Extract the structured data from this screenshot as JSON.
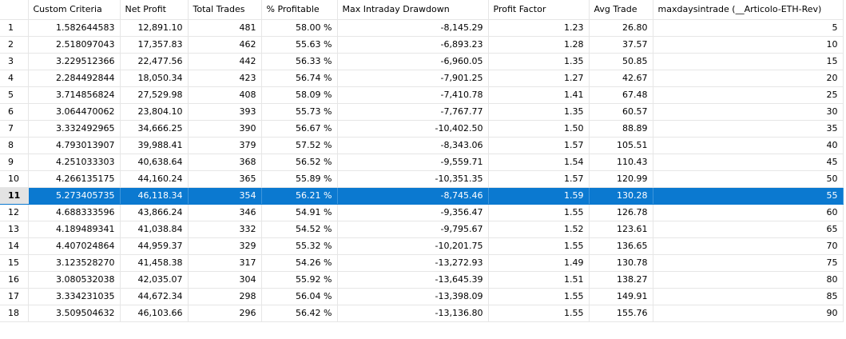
{
  "columns": [
    "",
    "Custom Criteria",
    "Net Profit",
    "Total Trades",
    "% Profitable",
    "Max Intraday Drawdown",
    "Profit Factor",
    "Avg Trade",
    "maxdaysintrade (__Articolo-ETH-Rev)"
  ],
  "selected_row": 11,
  "rows": [
    [
      "1",
      "1.582644583",
      "12,891.10",
      "481",
      "58.00 %",
      "-8,145.29",
      "1.23",
      "26.80",
      "5"
    ],
    [
      "2",
      "2.518097043",
      "17,357.83",
      "462",
      "55.63 %",
      "-6,893.23",
      "1.28",
      "37.57",
      "10"
    ],
    [
      "3",
      "3.229512366",
      "22,477.56",
      "442",
      "56.33 %",
      "-6,960.05",
      "1.35",
      "50.85",
      "15"
    ],
    [
      "4",
      "2.284492844",
      "18,050.34",
      "423",
      "56.74 %",
      "-7,901.25",
      "1.27",
      "42.67",
      "20"
    ],
    [
      "5",
      "3.714856824",
      "27,529.98",
      "408",
      "58.09 %",
      "-7,410.78",
      "1.41",
      "67.48",
      "25"
    ],
    [
      "6",
      "3.064470062",
      "23,804.10",
      "393",
      "55.73 %",
      "-7,767.77",
      "1.35",
      "60.57",
      "30"
    ],
    [
      "7",
      "3.332492965",
      "34,666.25",
      "390",
      "56.67 %",
      "-10,402.50",
      "1.50",
      "88.89",
      "35"
    ],
    [
      "8",
      "4.793013907",
      "39,988.41",
      "379",
      "57.52 %",
      "-8,343.06",
      "1.57",
      "105.51",
      "40"
    ],
    [
      "9",
      "4.251033303",
      "40,638.64",
      "368",
      "56.52 %",
      "-9,559.71",
      "1.54",
      "110.43",
      "45"
    ],
    [
      "10",
      "4.266135175",
      "44,160.24",
      "365",
      "55.89 %",
      "-10,351.35",
      "1.57",
      "120.99",
      "50"
    ],
    [
      "11",
      "5.273405735",
      "46,118.34",
      "354",
      "56.21 %",
      "-8,745.46",
      "1.59",
      "130.28",
      "55"
    ],
    [
      "12",
      "4.688333596",
      "43,866.24",
      "346",
      "54.91 %",
      "-9,356.47",
      "1.55",
      "126.78",
      "60"
    ],
    [
      "13",
      "4.189489341",
      "41,038.84",
      "332",
      "54.52 %",
      "-9,795.67",
      "1.52",
      "123.61",
      "65"
    ],
    [
      "14",
      "4.407024864",
      "44,959.37",
      "329",
      "55.32 %",
      "-10,201.75",
      "1.55",
      "136.65",
      "70"
    ],
    [
      "15",
      "3.123528270",
      "41,458.38",
      "317",
      "54.26 %",
      "-13,272.93",
      "1.49",
      "130.78",
      "75"
    ],
    [
      "16",
      "3.080532038",
      "42,035.07",
      "304",
      "55.92 %",
      "-13,645.39",
      "1.51",
      "138.27",
      "80"
    ],
    [
      "17",
      "3.334231035",
      "44,672.34",
      "298",
      "56.04 %",
      "-13,398.09",
      "1.55",
      "149.91",
      "85"
    ],
    [
      "18",
      "3.509504632",
      "46,103.66",
      "296",
      "56.42 %",
      "-13,136.80",
      "1.55",
      "155.76",
      "90"
    ]
  ]
}
